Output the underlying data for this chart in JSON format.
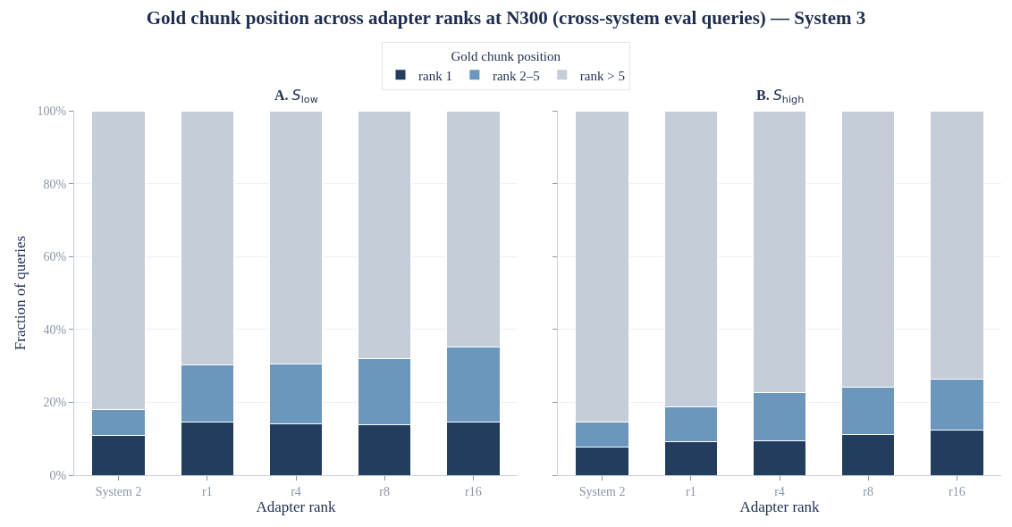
{
  "chart_data": [
    {
      "type": "bar",
      "title": "Gold chunk position across adapter ranks at N300 (cross-system eval queries) — System 3",
      "subtitle": "A. S$_{low}$",
      "xlabel": "Adapter rank",
      "ylabel": "Fraction of queries",
      "legend_title": "Gold chunk position",
      "legend": "top",
      "stacked": true,
      "grid": "y",
      "categories": [
        "System 2",
        "r1",
        "r4",
        "r8",
        "r16"
      ],
      "series": [
        {
          "name": "rank 1",
          "color": "#223d5e",
          "values": [
            11.0,
            14.5,
            14.1,
            13.9,
            14.5
          ]
        },
        {
          "name": "rank 2–5",
          "color": "#6a97bb",
          "values": [
            7.0,
            15.8,
            16.4,
            18.1,
            20.7
          ]
        },
        {
          "name": "rank > 5",
          "color": "#c5cdd8",
          "values": [
            82.0,
            69.7,
            69.5,
            68.0,
            64.8
          ]
        }
      ],
      "ylim": [
        0,
        100
      ],
      "yticks": [
        {
          "value": 0,
          "label": "0%"
        },
        {
          "value": 20,
          "label": "20%"
        },
        {
          "value": 40,
          "label": "40%"
        },
        {
          "value": 60,
          "label": "60%"
        },
        {
          "value": 80,
          "label": "80%"
        },
        {
          "value": 100,
          "label": "100%"
        }
      ]
    },
    {
      "type": "bar",
      "subtitle": "B. S$_{high}$",
      "xlabel": "Adapter rank",
      "stacked": true,
      "grid": "y",
      "tick_labels": "x",
      "categories": [
        "System 2",
        "r1",
        "r4",
        "r8",
        "r16"
      ],
      "series": [
        {
          "color": "#223d5e",
          "values": [
            7.8,
            9.3,
            9.5,
            11.2,
            12.3
          ]
        },
        {
          "color": "#6a97bb",
          "values": [
            6.9,
            9.5,
            13.2,
            13.0,
            14.1
          ]
        },
        {
          "color": "#c5cdd8",
          "values": [
            85.3,
            81.2,
            77.3,
            75.8,
            73.6
          ]
        }
      ],
      "ylim": [
        0,
        100
      ],
      "yticks": [
        0,
        20,
        40,
        60,
        80,
        100
      ]
    }
  ]
}
